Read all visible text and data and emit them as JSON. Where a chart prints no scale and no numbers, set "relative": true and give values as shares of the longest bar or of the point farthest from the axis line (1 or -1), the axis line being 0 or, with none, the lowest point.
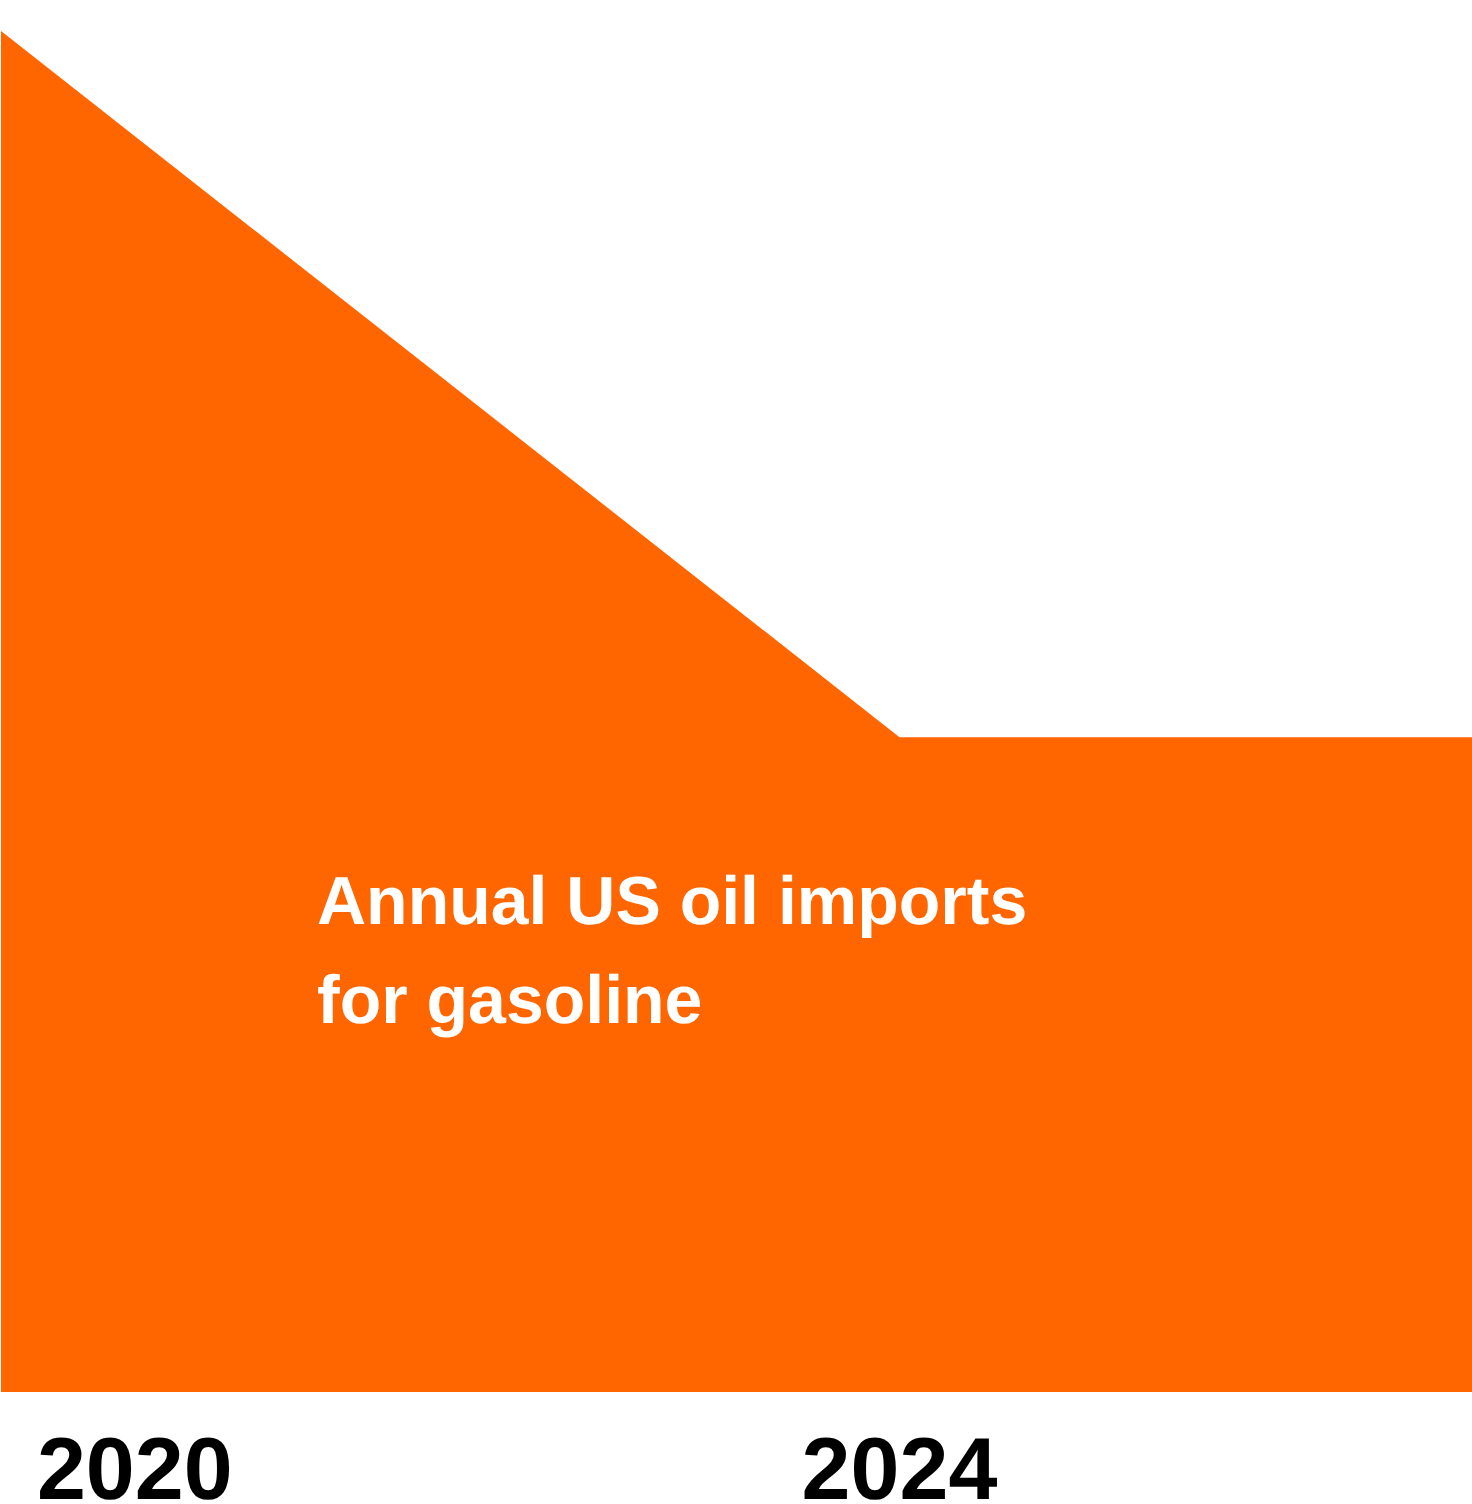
{
  "chart_data": {
    "type": "area",
    "relative": true,
    "x": [
      2019.3,
      2024,
      2027
    ],
    "xlim": [
      2019.3,
      2027
    ],
    "xticks": [
      2020,
      2024
    ],
    "tick_labels": "x",
    "grid": false,
    "series": [
      {
        "color": "#ff6600",
        "values": [
          1,
          0.48,
          0.48
        ]
      }
    ],
    "annotations": [
      "Annual US oil imports\nfor gasoline"
    ]
  }
}
